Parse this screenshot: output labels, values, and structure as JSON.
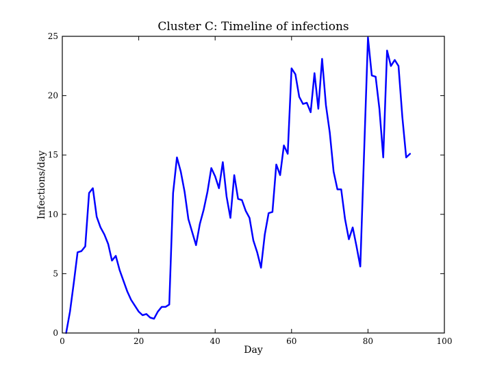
{
  "chart_data": {
    "type": "line",
    "title": "Cluster C: Timeline of infections",
    "xlabel": "Day",
    "ylabel": "Infections/day",
    "xlim": [
      0,
      100
    ],
    "ylim": [
      0,
      25
    ],
    "xticks": [
      0,
      20,
      40,
      60,
      80,
      100
    ],
    "yticks": [
      0,
      5,
      10,
      15,
      20,
      25
    ],
    "grid": false,
    "series": [
      {
        "color": "#0000ff",
        "x": [
          1,
          2,
          3,
          4,
          5,
          6,
          7,
          8,
          9,
          10,
          11,
          12,
          13,
          14,
          15,
          16,
          17,
          18,
          19,
          20,
          21,
          22,
          23,
          24,
          25,
          26,
          27,
          28,
          29,
          30,
          31,
          32,
          33,
          34,
          35,
          36,
          37,
          38,
          39,
          40,
          41,
          42,
          43,
          44,
          45,
          46,
          47,
          48,
          49,
          50,
          51,
          52,
          53,
          54,
          55,
          56,
          57,
          58,
          59,
          60,
          61,
          62,
          63,
          64,
          65,
          66,
          67,
          68,
          69,
          70,
          71,
          72,
          73,
          74,
          75,
          76,
          77,
          78,
          79,
          80,
          81,
          82,
          83,
          84,
          85,
          86,
          87,
          88,
          89,
          90,
          91
        ],
        "y": [
          0,
          1.8,
          4.2,
          6.8,
          6.9,
          7.3,
          11.8,
          12.2,
          9.8,
          8.9,
          8.3,
          7.5,
          6.1,
          6.5,
          5.3,
          4.4,
          3.5,
          2.8,
          2.3,
          1.8,
          1.5,
          1.6,
          1.3,
          1.2,
          1.8,
          2.2,
          2.2,
          2.4,
          11.8,
          14.8,
          13.6,
          11.9,
          9.6,
          8.5,
          7.4,
          9.2,
          10.4,
          11.9,
          13.9,
          13.2,
          12.2,
          14.4,
          11.5,
          9.7,
          13.3,
          11.3,
          11.2,
          10.3,
          9.7,
          7.8,
          6.8,
          5.5,
          8.3,
          10.1,
          10.2,
          14.2,
          13.3,
          15.8,
          15.1,
          22.3,
          21.8,
          19.9,
          19.3,
          19.4,
          18.6,
          21.9,
          18.9,
          23.1,
          19.2,
          16.9,
          13.6,
          12.1,
          12.1,
          9.6,
          7.9,
          8.9,
          7.3,
          5.6,
          15.3,
          24.9,
          21.7,
          21.6,
          18.9,
          14.8,
          23.8,
          22.5,
          23.0,
          22.5,
          18.2,
          14.8,
          15.1
        ]
      }
    ]
  }
}
